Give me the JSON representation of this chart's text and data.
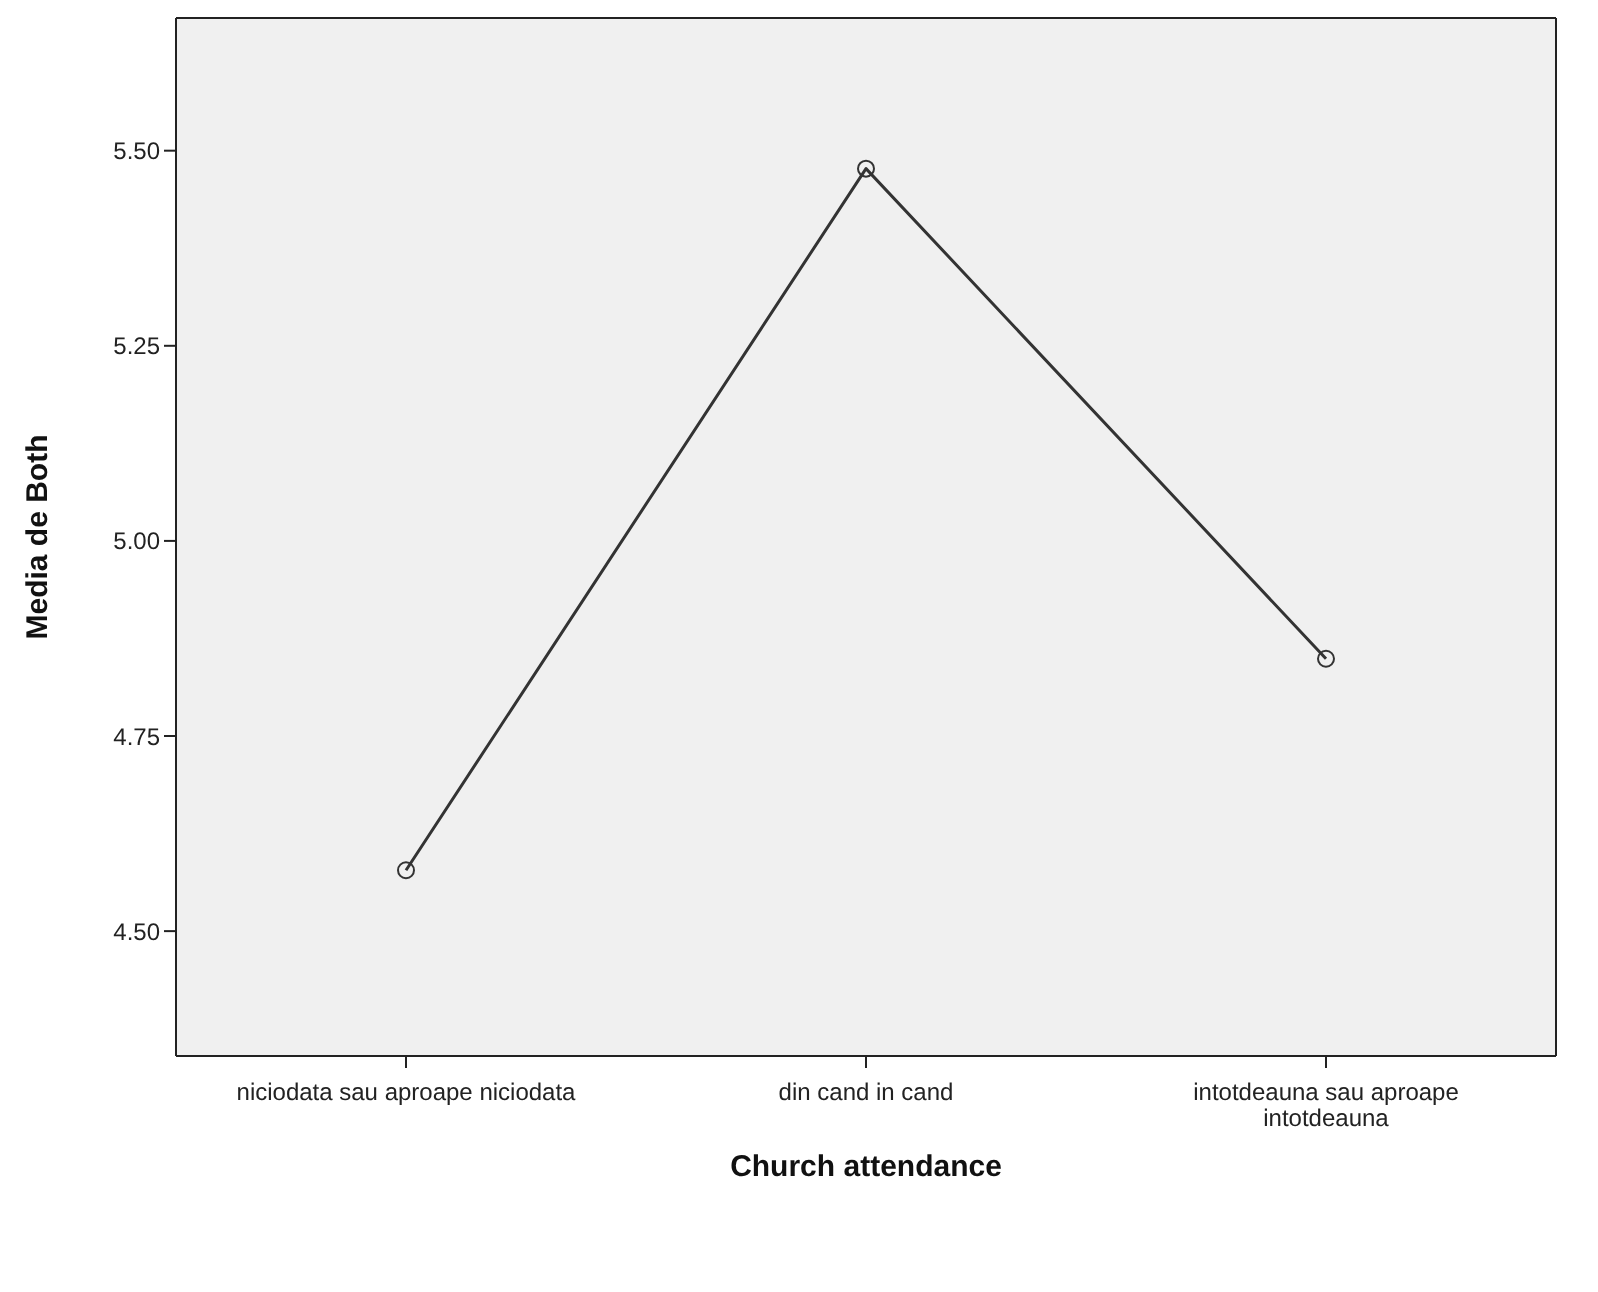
{
  "chart_data": {
    "type": "line",
    "xlabel": "Church attendance",
    "ylabel": "Media de Both",
    "categories": [
      "niciodata sau aproape niciodata",
      "din cand in cand",
      "intotdeauna sau aproape intotdeauna"
    ],
    "series": [
      {
        "color": "#333333",
        "values": [
          4.578,
          5.477,
          4.849
        ]
      }
    ],
    "ylim": [
      4.34,
      5.67
    ],
    "yticks": [
      {
        "value": 4.5,
        "label": "4.50"
      },
      {
        "value": 4.75,
        "label": "4.75"
      },
      {
        "value": 5,
        "label": "5.00"
      },
      {
        "value": 5.25,
        "label": "5.25"
      },
      {
        "value": 5.5,
        "label": "5.50"
      }
    ],
    "marker": "circle",
    "line_style": "solid"
  }
}
